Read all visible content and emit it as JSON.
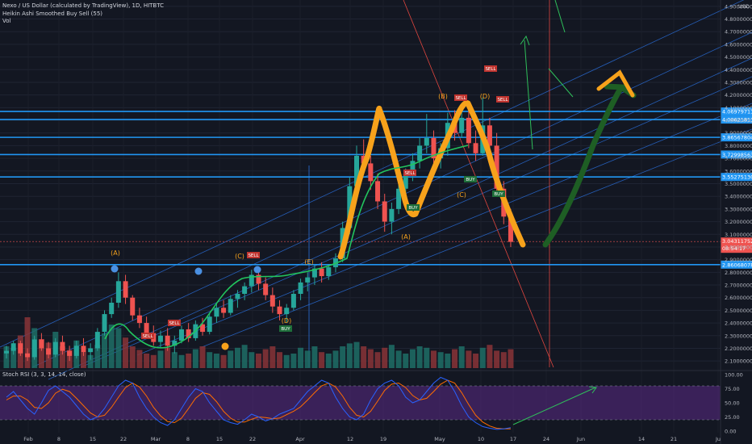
{
  "legend": {
    "symbol_line": "Nexo / US Dollar (calculated by TradingView), 1D, HITBTC",
    "indicator": "Heikin Ashi Smoothed Buy Sell (55)",
    "volume": "Vol",
    "rsi": "Stoch RSI (3, 3, 14, 14, close)"
  },
  "colors": {
    "background": "#131722",
    "up": "#26a69a",
    "down": "#ef5350",
    "hline": "#2196f3",
    "wave_drawing": "#f7a21b",
    "projection": "#1e5e24",
    "stoch_k": "#2962ff",
    "stoch_d": "#ff6d00",
    "rsi_band": "#5b2a86"
  },
  "chart_data": {
    "type": "candlestick",
    "title": "Nexo / US Dollar",
    "currency": "USD",
    "x_ticks": [
      "Feb",
      "8",
      "15",
      "22",
      "Mar",
      "8",
      "15",
      "22",
      "Apr",
      "12",
      "19",
      "May",
      "10",
      "17",
      "24",
      "Jun",
      "14",
      "21",
      "Ju"
    ],
    "y_ticks": [
      "4.900000000",
      "4.800000000",
      "4.700000000",
      "4.600000000",
      "4.500000000",
      "4.400000000",
      "4.300000000",
      "4.200000000",
      "4.100000000",
      "4.000000000",
      "3.900000000",
      "3.800000000",
      "3.700000000",
      "3.600000000",
      "3.500000000",
      "3.400000000",
      "3.300000000",
      "3.200000000",
      "3.100000000",
      "3.000000000",
      "2.900000000",
      "2.800000000",
      "2.700000000",
      "2.600000000",
      "2.500000000",
      "2.400000000",
      "2.300000000",
      "2.200000000",
      "2.100000000"
    ],
    "ylim": [
      2.05,
      4.95
    ],
    "horizontal_levels": [
      {
        "label": "4.069797117",
        "value": 4.0698
      },
      {
        "label": "4.006218114",
        "value": 4.0062
      },
      {
        "label": "3.865678042",
        "value": 3.8657
      },
      {
        "label": "3.729985638",
        "value": 3.73
      },
      {
        "label": "3.552751305",
        "value": 3.5528
      },
      {
        "label": "2.860680787",
        "value": 2.8607
      }
    ],
    "last_price": {
      "label": "3.043117529",
      "countdown": "08:54:17",
      "value": 3.0431
    },
    "wave_labels": [
      "(A)",
      "(C)",
      "(E)",
      "(D)",
      "(A)",
      "(B)",
      "(C)",
      "(D)"
    ],
    "signals": [
      "SELL",
      "SELL",
      "SELL",
      "SELL",
      "SELL",
      "SELL",
      "SELL",
      "BUY",
      "BUY",
      "BUY",
      "BUY"
    ],
    "candles": [
      {
        "o": 2.16,
        "h": 2.22,
        "l": 2.12,
        "c": 2.18
      },
      {
        "o": 2.18,
        "h": 2.26,
        "l": 2.15,
        "c": 2.24
      },
      {
        "o": 2.24,
        "h": 2.26,
        "l": 2.14,
        "c": 2.16
      },
      {
        "o": 2.16,
        "h": 2.2,
        "l": 2.1,
        "c": 2.13
      },
      {
        "o": 2.13,
        "h": 2.3,
        "l": 2.11,
        "c": 2.27
      },
      {
        "o": 2.27,
        "h": 2.32,
        "l": 2.18,
        "c": 2.2
      },
      {
        "o": 2.2,
        "h": 2.25,
        "l": 2.12,
        "c": 2.15
      },
      {
        "o": 2.15,
        "h": 2.28,
        "l": 2.13,
        "c": 2.25
      },
      {
        "o": 2.25,
        "h": 2.3,
        "l": 2.15,
        "c": 2.18
      },
      {
        "o": 2.18,
        "h": 2.22,
        "l": 2.1,
        "c": 2.14
      },
      {
        "o": 2.14,
        "h": 2.26,
        "l": 2.12,
        "c": 2.22
      },
      {
        "o": 2.22,
        "h": 2.28,
        "l": 2.14,
        "c": 2.17
      },
      {
        "o": 2.17,
        "h": 2.24,
        "l": 2.11,
        "c": 2.2
      },
      {
        "o": 2.2,
        "h": 2.36,
        "l": 2.18,
        "c": 2.33
      },
      {
        "o": 2.33,
        "h": 2.5,
        "l": 2.3,
        "c": 2.47
      },
      {
        "o": 2.47,
        "h": 2.6,
        "l": 2.44,
        "c": 2.56
      },
      {
        "o": 2.56,
        "h": 2.8,
        "l": 2.52,
        "c": 2.73
      },
      {
        "o": 2.73,
        "h": 2.78,
        "l": 2.55,
        "c": 2.6
      },
      {
        "o": 2.6,
        "h": 2.62,
        "l": 2.42,
        "c": 2.46
      },
      {
        "o": 2.46,
        "h": 2.52,
        "l": 2.36,
        "c": 2.4
      },
      {
        "o": 2.4,
        "h": 2.45,
        "l": 2.28,
        "c": 2.32
      },
      {
        "o": 2.32,
        "h": 2.38,
        "l": 2.22,
        "c": 2.25
      },
      {
        "o": 2.25,
        "h": 2.34,
        "l": 2.2,
        "c": 2.3
      },
      {
        "o": 2.3,
        "h": 2.36,
        "l": 2.18,
        "c": 2.22
      },
      {
        "o": 2.22,
        "h": 2.3,
        "l": 2.16,
        "c": 2.26
      },
      {
        "o": 2.26,
        "h": 2.38,
        "l": 2.24,
        "c": 2.35
      },
      {
        "o": 2.35,
        "h": 2.4,
        "l": 2.25,
        "c": 2.28
      },
      {
        "o": 2.28,
        "h": 2.42,
        "l": 2.26,
        "c": 2.39
      },
      {
        "o": 2.39,
        "h": 2.44,
        "l": 2.3,
        "c": 2.33
      },
      {
        "o": 2.33,
        "h": 2.48,
        "l": 2.31,
        "c": 2.45
      },
      {
        "o": 2.45,
        "h": 2.55,
        "l": 2.4,
        "c": 2.52
      },
      {
        "o": 2.52,
        "h": 2.58,
        "l": 2.44,
        "c": 2.48
      },
      {
        "o": 2.48,
        "h": 2.62,
        "l": 2.46,
        "c": 2.59
      },
      {
        "o": 2.59,
        "h": 2.66,
        "l": 2.52,
        "c": 2.63
      },
      {
        "o": 2.63,
        "h": 2.72,
        "l": 2.58,
        "c": 2.69
      },
      {
        "o": 2.69,
        "h": 2.82,
        "l": 2.64,
        "c": 2.78
      },
      {
        "o": 2.78,
        "h": 2.84,
        "l": 2.66,
        "c": 2.71
      },
      {
        "o": 2.71,
        "h": 2.76,
        "l": 2.58,
        "c": 2.62
      },
      {
        "o": 2.62,
        "h": 2.68,
        "l": 2.48,
        "c": 2.53
      },
      {
        "o": 2.53,
        "h": 2.58,
        "l": 2.42,
        "c": 2.47
      },
      {
        "o": 2.47,
        "h": 2.55,
        "l": 2.4,
        "c": 2.52
      },
      {
        "o": 2.52,
        "h": 2.66,
        "l": 2.5,
        "c": 2.63
      },
      {
        "o": 2.63,
        "h": 2.75,
        "l": 2.58,
        "c": 2.72
      },
      {
        "o": 2.72,
        "h": 2.8,
        "l": 2.65,
        "c": 2.76
      },
      {
        "o": 2.76,
        "h": 2.86,
        "l": 2.7,
        "c": 2.83
      },
      {
        "o": 2.83,
        "h": 2.88,
        "l": 2.72,
        "c": 2.77
      },
      {
        "o": 2.77,
        "h": 2.86,
        "l": 2.74,
        "c": 2.84
      },
      {
        "o": 2.84,
        "h": 2.95,
        "l": 2.8,
        "c": 2.91
      },
      {
        "o": 2.91,
        "h": 3.2,
        "l": 2.88,
        "c": 3.15
      },
      {
        "o": 3.15,
        "h": 3.55,
        "l": 3.1,
        "c": 3.48
      },
      {
        "o": 3.48,
        "h": 3.8,
        "l": 3.44,
        "c": 3.72
      },
      {
        "o": 3.72,
        "h": 3.85,
        "l": 3.6,
        "c": 3.66
      },
      {
        "o": 3.66,
        "h": 3.72,
        "l": 3.45,
        "c": 3.52
      },
      {
        "o": 3.52,
        "h": 3.58,
        "l": 3.3,
        "c": 3.36
      },
      {
        "o": 3.36,
        "h": 3.42,
        "l": 3.12,
        "c": 3.2
      },
      {
        "o": 3.2,
        "h": 3.35,
        "l": 3.1,
        "c": 3.3
      },
      {
        "o": 3.3,
        "h": 3.52,
        "l": 3.26,
        "c": 3.46
      },
      {
        "o": 3.46,
        "h": 3.62,
        "l": 3.4,
        "c": 3.58
      },
      {
        "o": 3.58,
        "h": 3.74,
        "l": 3.52,
        "c": 3.68
      },
      {
        "o": 3.68,
        "h": 3.86,
        "l": 3.62,
        "c": 3.8
      },
      {
        "o": 3.8,
        "h": 4.05,
        "l": 3.74,
        "c": 3.86
      },
      {
        "o": 3.86,
        "h": 3.92,
        "l": 3.66,
        "c": 3.7
      },
      {
        "o": 3.7,
        "h": 3.82,
        "l": 3.62,
        "c": 3.78
      },
      {
        "o": 3.78,
        "h": 4.06,
        "l": 3.72,
        "c": 3.98
      },
      {
        "o": 3.98,
        "h": 4.08,
        "l": 3.84,
        "c": 3.9
      },
      {
        "o": 3.9,
        "h": 4.12,
        "l": 3.86,
        "c": 4.02
      },
      {
        "o": 4.02,
        "h": 4.1,
        "l": 3.78,
        "c": 3.82
      },
      {
        "o": 3.82,
        "h": 3.92,
        "l": 3.68,
        "c": 3.74
      },
      {
        "o": 3.74,
        "h": 4.18,
        "l": 3.72,
        "c": 3.96
      },
      {
        "o": 3.96,
        "h": 4.02,
        "l": 3.7,
        "c": 3.8
      },
      {
        "o": 3.8,
        "h": 3.9,
        "l": 3.4,
        "c": 3.46
      },
      {
        "o": 3.46,
        "h": 3.52,
        "l": 3.18,
        "c": 3.24
      },
      {
        "o": 3.24,
        "h": 3.3,
        "l": 3.0,
        "c": 3.04
      }
    ],
    "volumes": [
      0.3,
      0.28,
      0.45,
      0.7,
      0.55,
      0.4,
      0.35,
      0.5,
      0.3,
      0.25,
      0.38,
      0.22,
      0.18,
      0.32,
      0.48,
      0.6,
      0.55,
      0.42,
      0.3,
      0.25,
      0.2,
      0.18,
      0.24,
      0.28,
      0.22,
      0.18,
      0.2,
      0.26,
      0.3,
      0.22,
      0.2,
      0.18,
      0.24,
      0.28,
      0.32,
      0.22,
      0.2,
      0.26,
      0.3,
      0.22,
      0.18,
      0.2,
      0.28,
      0.24,
      0.3,
      0.22,
      0.2,
      0.24,
      0.3,
      0.34,
      0.36,
      0.3,
      0.26,
      0.22,
      0.28,
      0.32,
      0.24,
      0.2,
      0.26,
      0.3,
      0.28,
      0.24,
      0.22,
      0.2,
      0.26,
      0.3,
      0.24,
      0.2,
      0.28,
      0.32,
      0.24,
      0.22,
      0.26
    ],
    "rsi_ticks": [
      "100.00",
      "75.00",
      "50.00",
      "25.00",
      "0.00"
    ],
    "stoch_k": [
      60,
      70,
      55,
      40,
      30,
      50,
      72,
      80,
      70,
      60,
      45,
      30,
      20,
      25,
      40,
      60,
      80,
      90,
      85,
      60,
      40,
      25,
      15,
      10,
      20,
      40,
      60,
      75,
      70,
      50,
      35,
      20,
      15,
      12,
      20,
      30,
      25,
      18,
      22,
      30,
      35,
      40,
      55,
      70,
      80,
      90,
      85,
      60,
      40,
      25,
      20,
      30,
      55,
      75,
      85,
      90,
      80,
      60,
      50,
      55,
      70,
      85,
      95,
      90,
      70,
      45,
      25,
      15,
      8,
      5,
      3,
      4,
      6
    ],
    "stoch_d": [
      55,
      62,
      62,
      55,
      42,
      40,
      50,
      67,
      74,
      70,
      58,
      45,
      32,
      25,
      28,
      42,
      60,
      77,
      85,
      78,
      62,
      42,
      27,
      17,
      15,
      23,
      40,
      58,
      68,
      65,
      52,
      35,
      23,
      16,
      16,
      21,
      25,
      24,
      22,
      23,
      29,
      35,
      43,
      55,
      68,
      80,
      85,
      78,
      62,
      42,
      28,
      25,
      35,
      53,
      72,
      83,
      85,
      77,
      63,
      55,
      58,
      70,
      83,
      90,
      85,
      68,
      47,
      28,
      16,
      9,
      5,
      4,
      4
    ]
  }
}
